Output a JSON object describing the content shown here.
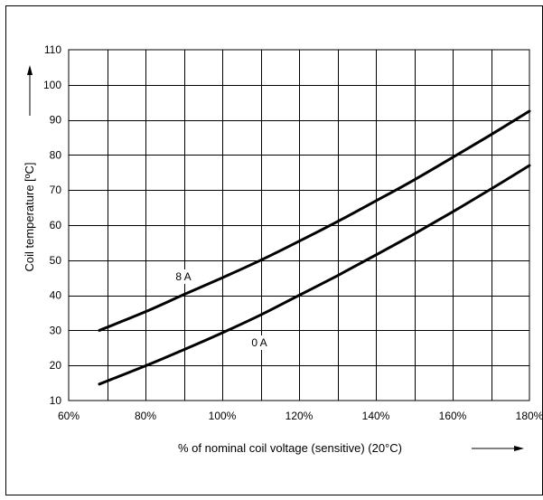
{
  "chart_data": {
    "type": "line",
    "xlabel": "% of nominal coil voltage (sensitive) (20°C)",
    "ylabel": "Coil temperature [ºC]",
    "xlim": [
      60,
      180
    ],
    "ylim": [
      10,
      110
    ],
    "x_ticks": [
      60,
      80,
      100,
      120,
      140,
      160,
      180
    ],
    "x_tick_labels": [
      "60%",
      "80%",
      "100%",
      "120%",
      "140%",
      "160%",
      "180%"
    ],
    "y_ticks": [
      10,
      20,
      30,
      40,
      50,
      60,
      70,
      80,
      90,
      100,
      110
    ],
    "y_tick_labels": [
      "10",
      "20",
      "30",
      "40",
      "50",
      "60",
      "70",
      "80",
      "90",
      "100",
      "110"
    ],
    "x_minor_step": 10,
    "grid": true,
    "legend": "none",
    "series": [
      {
        "name": "8 A",
        "color": "#000000",
        "x": [
          68,
          80,
          90,
          100,
          110,
          120,
          130,
          140,
          150,
          160,
          170,
          180
        ],
        "y": [
          30,
          35.3,
          40.2,
          45,
          50,
          55.4,
          61,
          66.9,
          72.9,
          79.3,
          85.8,
          92.5
        ]
      },
      {
        "name": "0 A",
        "color": "#000000",
        "x": [
          68,
          80,
          90,
          100,
          110,
          120,
          130,
          140,
          150,
          160,
          170,
          180
        ],
        "y": [
          14.7,
          19.9,
          24.5,
          29.3,
          34.4,
          40,
          45.6,
          51.5,
          57.5,
          63.8,
          70.3,
          77
        ]
      }
    ]
  }
}
